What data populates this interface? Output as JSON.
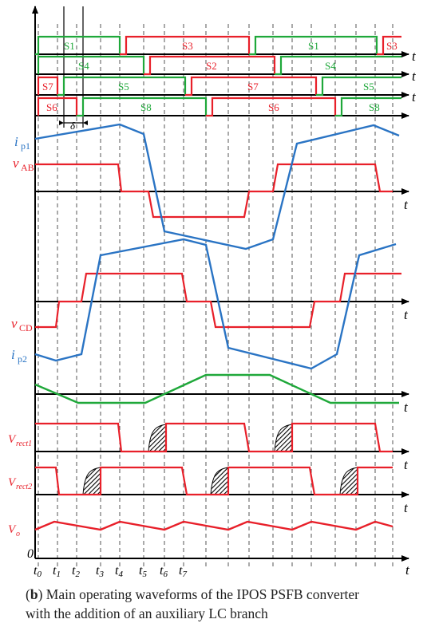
{
  "colors": {
    "axis": "#000000",
    "red": "#e8202a",
    "green": "#1fa83a",
    "blue": "#2a74c4",
    "dash": "#555555"
  },
  "labels": {
    "time_axis": "t",
    "origin": "0",
    "delta": "δ",
    "ip1_main": "i",
    "ip1_sub": "p1",
    "vab_main": "v",
    "vab_sub": "AB",
    "vcd_main": "v",
    "vcd_sub": "CD",
    "ip2_main": "i",
    "ip2_sub": "p2",
    "vrect1_main": "V",
    "vrect1_sub": "rect1",
    "vrect2_main": "V",
    "vrect2_sub": "rect2",
    "vo_main": "V",
    "vo_sub": "o"
  },
  "time_ticks": [
    "t0",
    "t1",
    "t2",
    "t3",
    "t4",
    "t5",
    "t6",
    "t7"
  ],
  "switch_rows": [
    {
      "key": "row1",
      "segments": [
        "S1",
        "S3",
        "S1",
        "S3"
      ]
    },
    {
      "key": "row2",
      "segments": [
        "S4",
        "S2",
        "S4"
      ]
    },
    {
      "key": "row3",
      "segments": [
        "S7",
        "S5",
        "S7",
        "S5"
      ]
    },
    {
      "key": "row4",
      "segments": [
        "S6",
        "S8",
        "S6",
        "S8"
      ]
    }
  ],
  "caption": {
    "prefix": "(",
    "letter": "b",
    "line1_rest": ") Main operating waveforms of the IPOS PSFB converter",
    "line2": "with the addition of an auxiliary LC branch"
  }
}
